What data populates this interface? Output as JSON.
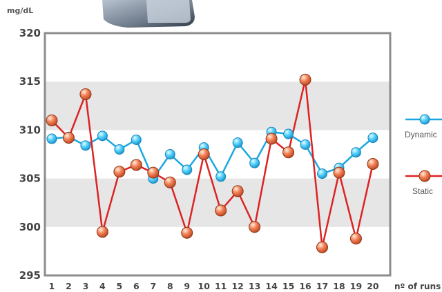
{
  "chart_data": {
    "type": "line",
    "ylabel": "mg/dL",
    "xlabel": "nº of runs",
    "ylim": [
      295,
      320
    ],
    "yticks": [
      "295",
      "300",
      "305",
      "310",
      "315",
      "320"
    ],
    "x": [
      1,
      2,
      3,
      4,
      5,
      6,
      7,
      8,
      9,
      10,
      11,
      12,
      13,
      14,
      15,
      16,
      17,
      18,
      19,
      20
    ],
    "bands": [
      [
        300,
        305
      ],
      [
        310,
        315
      ]
    ],
    "series": [
      {
        "name": "Dynamic",
        "color": "#1aa7e0",
        "values": [
          309.1,
          309.3,
          308.4,
          309.4,
          308.0,
          309.0,
          305.0,
          307.5,
          305.9,
          308.2,
          305.2,
          308.7,
          306.6,
          309.8,
          309.6,
          308.5,
          305.5,
          306.1,
          307.7,
          309.2
        ]
      },
      {
        "name": "Static",
        "color": "#dd2222",
        "values": [
          311.0,
          309.2,
          313.7,
          299.5,
          305.7,
          306.4,
          305.6,
          304.6,
          299.4,
          307.5,
          301.7,
          303.7,
          300.0,
          309.1,
          307.7,
          315.2,
          297.9,
          305.6,
          298.8,
          306.5
        ]
      }
    ],
    "legend_position": "right",
    "grid": false
  }
}
